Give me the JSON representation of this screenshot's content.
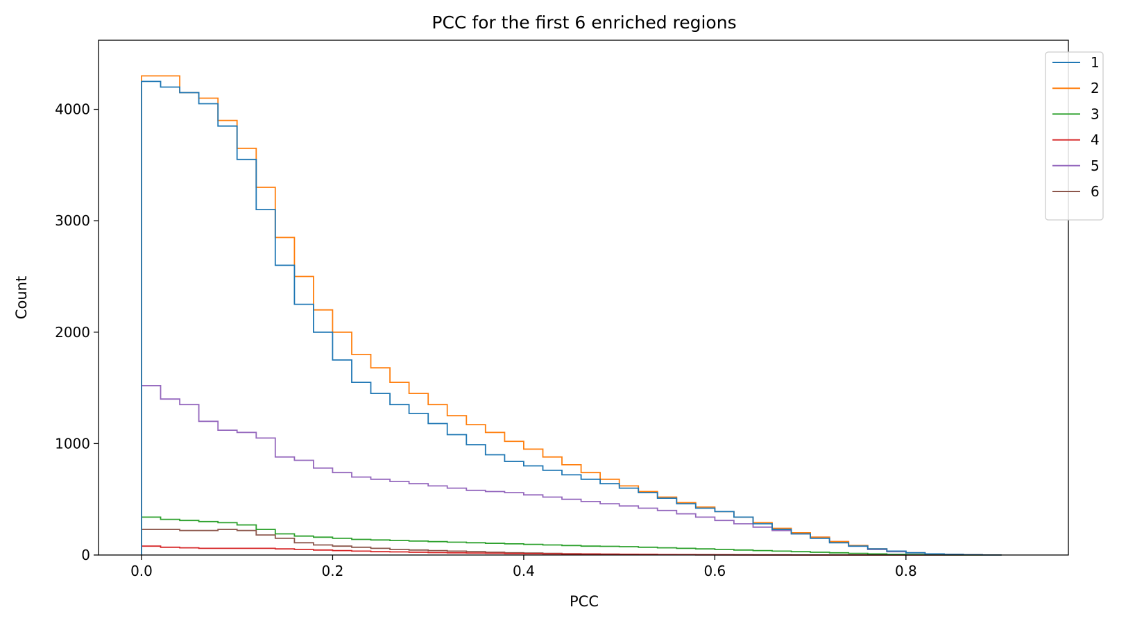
{
  "chart_data": {
    "type": "line",
    "style": "step-histogram",
    "title": "PCC for the first 6 enriched regions",
    "xlabel": "PCC",
    "ylabel": "Count",
    "xlim": [
      -0.045,
      0.97
    ],
    "ylim": [
      0,
      4620
    ],
    "x_ticks": [
      0.0,
      0.2,
      0.4,
      0.6,
      0.8
    ],
    "x_tick_labels": [
      "0.0",
      "0.2",
      "0.4",
      "0.6",
      "0.8"
    ],
    "y_ticks": [
      0,
      1000,
      2000,
      3000,
      4000
    ],
    "y_tick_labels": [
      "0",
      "1000",
      "2000",
      "3000",
      "4000"
    ],
    "grid": false,
    "legend_position": "top-right",
    "x": [
      0.0,
      0.02,
      0.04,
      0.06,
      0.08,
      0.1,
      0.12,
      0.14,
      0.16,
      0.18,
      0.2,
      0.22,
      0.24,
      0.26,
      0.28,
      0.3,
      0.32,
      0.34,
      0.36,
      0.38,
      0.4,
      0.42,
      0.44,
      0.46,
      0.48,
      0.5,
      0.52,
      0.54,
      0.56,
      0.58,
      0.6,
      0.62,
      0.64,
      0.66,
      0.68,
      0.7,
      0.72,
      0.74,
      0.76,
      0.78,
      0.8,
      0.82,
      0.84,
      0.86,
      0.88
    ],
    "series": [
      {
        "name": "1",
        "color": "#1f77b4",
        "values": [
          4250,
          4200,
          4150,
          4050,
          3850,
          3550,
          3100,
          2600,
          2250,
          2000,
          1750,
          1550,
          1450,
          1350,
          1270,
          1180,
          1080,
          990,
          900,
          840,
          800,
          760,
          720,
          680,
          640,
          600,
          560,
          510,
          460,
          420,
          390,
          340,
          280,
          230,
          190,
          150,
          110,
          80,
          55,
          35,
          20,
          10,
          5,
          2,
          0
        ]
      },
      {
        "name": "2",
        "color": "#ff7f0e",
        "values": [
          4300,
          4300,
          4150,
          4100,
          3900,
          3650,
          3300,
          2850,
          2500,
          2200,
          2000,
          1800,
          1680,
          1550,
          1450,
          1350,
          1250,
          1170,
          1100,
          1020,
          950,
          880,
          810,
          740,
          680,
          620,
          570,
          520,
          470,
          430,
          390,
          340,
          290,
          240,
          200,
          160,
          120,
          85,
          55,
          35,
          20,
          10,
          5,
          2,
          0
        ]
      },
      {
        "name": "3",
        "color": "#2ca02c",
        "values": [
          340,
          320,
          310,
          300,
          290,
          270,
          230,
          190,
          170,
          160,
          150,
          140,
          135,
          130,
          125,
          120,
          115,
          110,
          105,
          100,
          95,
          90,
          85,
          80,
          78,
          75,
          70,
          65,
          60,
          55,
          50,
          45,
          40,
          35,
          30,
          25,
          20,
          15,
          10,
          5,
          3,
          2,
          1,
          0,
          0
        ]
      },
      {
        "name": "4",
        "color": "#d62728",
        "values": [
          80,
          70,
          65,
          60,
          60,
          60,
          60,
          55,
          50,
          45,
          40,
          35,
          30,
          28,
          25,
          22,
          20,
          18,
          16,
          14,
          12,
          10,
          9,
          8,
          7,
          6,
          5,
          4,
          3,
          2,
          2,
          1,
          1,
          1,
          0,
          0,
          0,
          0,
          0,
          0,
          0,
          0,
          0,
          0,
          0
        ]
      },
      {
        "name": "5",
        "color": "#9467bd",
        "values": [
          1520,
          1400,
          1350,
          1200,
          1120,
          1100,
          1050,
          880,
          850,
          780,
          740,
          700,
          680,
          660,
          640,
          620,
          600,
          580,
          570,
          560,
          540,
          520,
          500,
          480,
          460,
          440,
          420,
          400,
          370,
          340,
          310,
          280,
          250,
          220,
          190,
          160,
          120,
          80,
          50,
          30,
          20,
          10,
          5,
          2,
          0
        ]
      },
      {
        "name": "6",
        "color": "#8c564b",
        "values": [
          230,
          230,
          220,
          220,
          230,
          220,
          180,
          150,
          110,
          90,
          80,
          70,
          60,
          50,
          45,
          40,
          35,
          30,
          25,
          20,
          18,
          15,
          12,
          10,
          8,
          6,
          5,
          4,
          3,
          2,
          1,
          1,
          0,
          0,
          0,
          0,
          0,
          0,
          0,
          0,
          0,
          0,
          0,
          0,
          0
        ]
      }
    ]
  }
}
